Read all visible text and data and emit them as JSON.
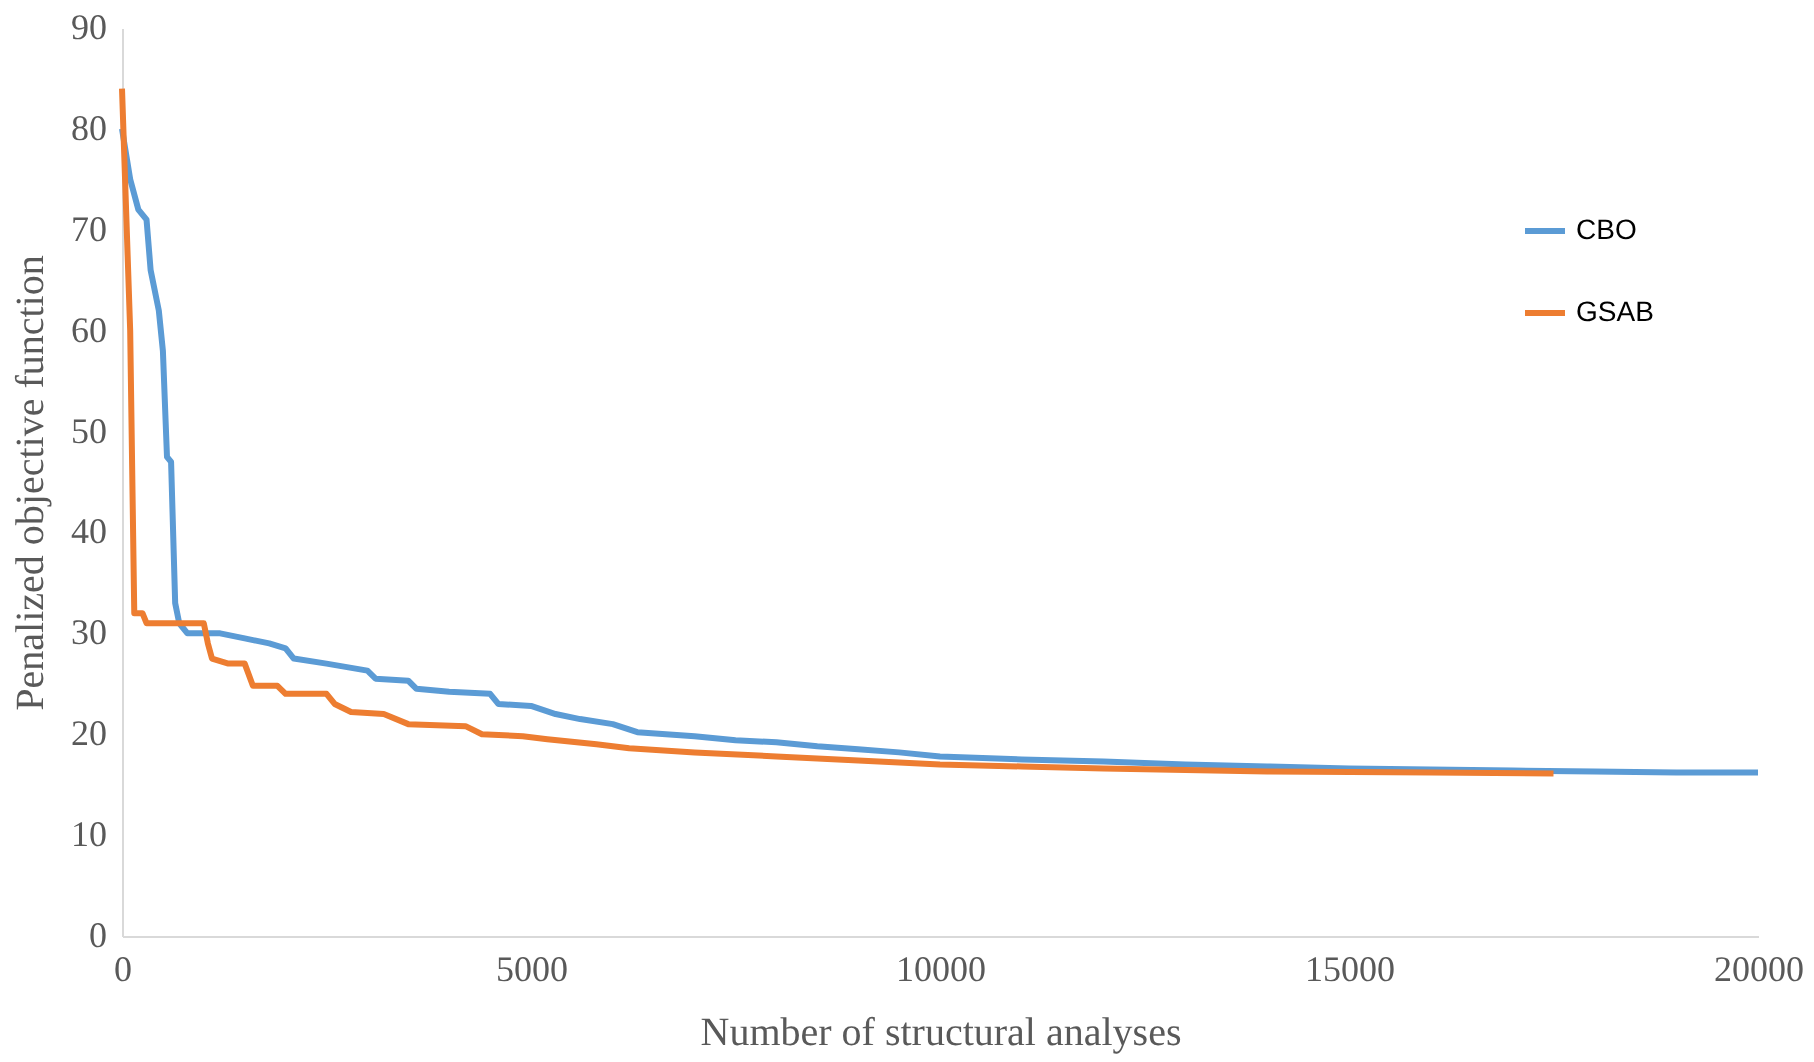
{
  "chart_data": {
    "type": "line",
    "xlabel": "Number of structural analyses",
    "ylabel": "Penalized objective function",
    "xlim": [
      0,
      20000
    ],
    "xticks": [
      0,
      5000,
      10000,
      15000,
      20000
    ],
    "ylim": [
      0,
      90
    ],
    "yticks": [
      0,
      10,
      20,
      30,
      40,
      50,
      60,
      70,
      80,
      90
    ],
    "grid": false,
    "legend": "top right",
    "marker": "none",
    "line_style": "solid",
    "series": [
      {
        "name": "CBO",
        "color": "#5b9bd5",
        "x": [
          0,
          100,
          200,
          300,
          350,
          450,
          500,
          550,
          600,
          650,
          700,
          800,
          1000,
          1200,
          1500,
          1800,
          2000,
          2100,
          2500,
          3000,
          3100,
          3500,
          3600,
          4000,
          4500,
          4600,
          5000,
          5300,
          5600,
          6000,
          6300,
          7000,
          7500,
          8000,
          8500,
          9000,
          9500,
          10000,
          11000,
          12000,
          13000,
          14000,
          15000,
          16000,
          17000,
          18000,
          19000,
          20000
        ],
        "values": [
          80,
          75,
          72,
          71,
          66,
          62,
          58,
          47.5,
          47,
          33,
          31,
          30,
          30,
          30,
          29.5,
          29,
          28.5,
          27.5,
          27,
          26.3,
          25.5,
          25.3,
          24.5,
          24.2,
          24,
          23,
          22.8,
          22,
          21.5,
          21,
          20.2,
          19.8,
          19.4,
          19.2,
          18.8,
          18.5,
          18.2,
          17.8,
          17.5,
          17.3,
          17,
          16.8,
          16.6,
          16.5,
          16.4,
          16.3,
          16.2,
          16.2
        ]
      },
      {
        "name": "GSAB",
        "color": "#ed7d31",
        "x": [
          0,
          100,
          150,
          250,
          300,
          500,
          1000,
          1050,
          1100,
          1300,
          1500,
          1600,
          1900,
          2000,
          2500,
          2600,
          2800,
          3200,
          3500,
          4200,
          4400,
          4900,
          5200,
          5800,
          6200,
          7000,
          8000,
          9000,
          10000,
          11000,
          12000,
          14000,
          16000,
          17500
        ],
        "values": [
          84,
          60,
          32,
          32,
          31,
          31,
          31,
          29,
          27.5,
          27,
          27,
          24.8,
          24.8,
          24,
          24,
          23,
          22.2,
          22,
          21,
          20.8,
          20,
          19.8,
          19.5,
          19,
          18.6,
          18.2,
          17.8,
          17.4,
          17,
          16.8,
          16.6,
          16.3,
          16.2,
          16.1
        ]
      }
    ]
  }
}
